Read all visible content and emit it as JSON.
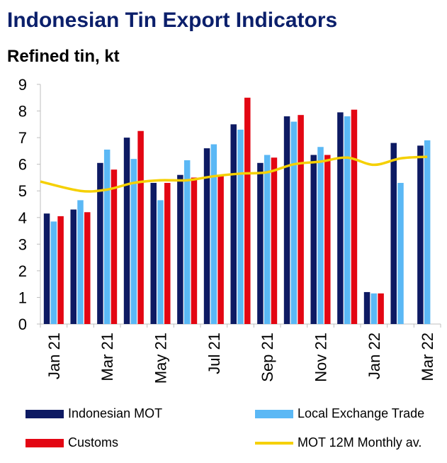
{
  "title": "Indonesian Tin Export Indicators",
  "subtitle": "Refined tin, kt",
  "colors": {
    "mot": "#0d1a63",
    "lme": "#5bb8f5",
    "customs": "#e30613",
    "avg": "#f5d000"
  },
  "chart_data": {
    "type": "bar",
    "categories": [
      "Jan 21",
      "Feb 21",
      "Mar 21",
      "Apr 21",
      "May 21",
      "Jun 21",
      "Jul 21",
      "Aug 21",
      "Sep 21",
      "Oct 21",
      "Nov 21",
      "Dec 21",
      "Jan 22",
      "Feb 22",
      "Mar 22"
    ],
    "x_tick_labels": [
      "Jan 21",
      "",
      "Mar 21",
      "",
      "May 21",
      "",
      "Jul 21",
      "",
      "Sep 21",
      "",
      "Nov 21",
      "",
      "Jan 22",
      "",
      "Mar 22"
    ],
    "ylim": [
      0,
      9
    ],
    "yticks": [
      0,
      1,
      2,
      3,
      4,
      5,
      6,
      7,
      8,
      9
    ],
    "grid": false,
    "legend_position": "bottom",
    "series": [
      {
        "name": "Indonesian MOT",
        "type": "bar",
        "values": [
          4.15,
          4.3,
          6.05,
          7.0,
          5.3,
          5.6,
          6.6,
          7.5,
          6.05,
          7.8,
          6.35,
          7.95,
          1.2,
          6.8,
          6.7
        ]
      },
      {
        "name": "Local Exchange Trade",
        "type": "bar",
        "values": [
          3.85,
          4.65,
          6.55,
          6.2,
          4.65,
          6.15,
          6.75,
          7.3,
          6.35,
          7.6,
          6.65,
          7.8,
          1.15,
          5.3,
          6.9
        ]
      },
      {
        "name": "Customs",
        "type": "bar",
        "values": [
          4.05,
          4.2,
          5.8,
          7.25,
          5.3,
          5.5,
          5.6,
          8.5,
          6.25,
          7.85,
          6.35,
          8.05,
          1.15,
          null,
          null
        ]
      },
      {
        "name": "MOT 12M Monthly av.",
        "type": "line",
        "values": [
          5.35,
          5.0,
          5.05,
          5.3,
          5.4,
          5.4,
          5.55,
          5.65,
          5.7,
          6.0,
          6.1,
          6.25,
          5.98,
          6.22,
          6.28
        ]
      }
    ]
  }
}
